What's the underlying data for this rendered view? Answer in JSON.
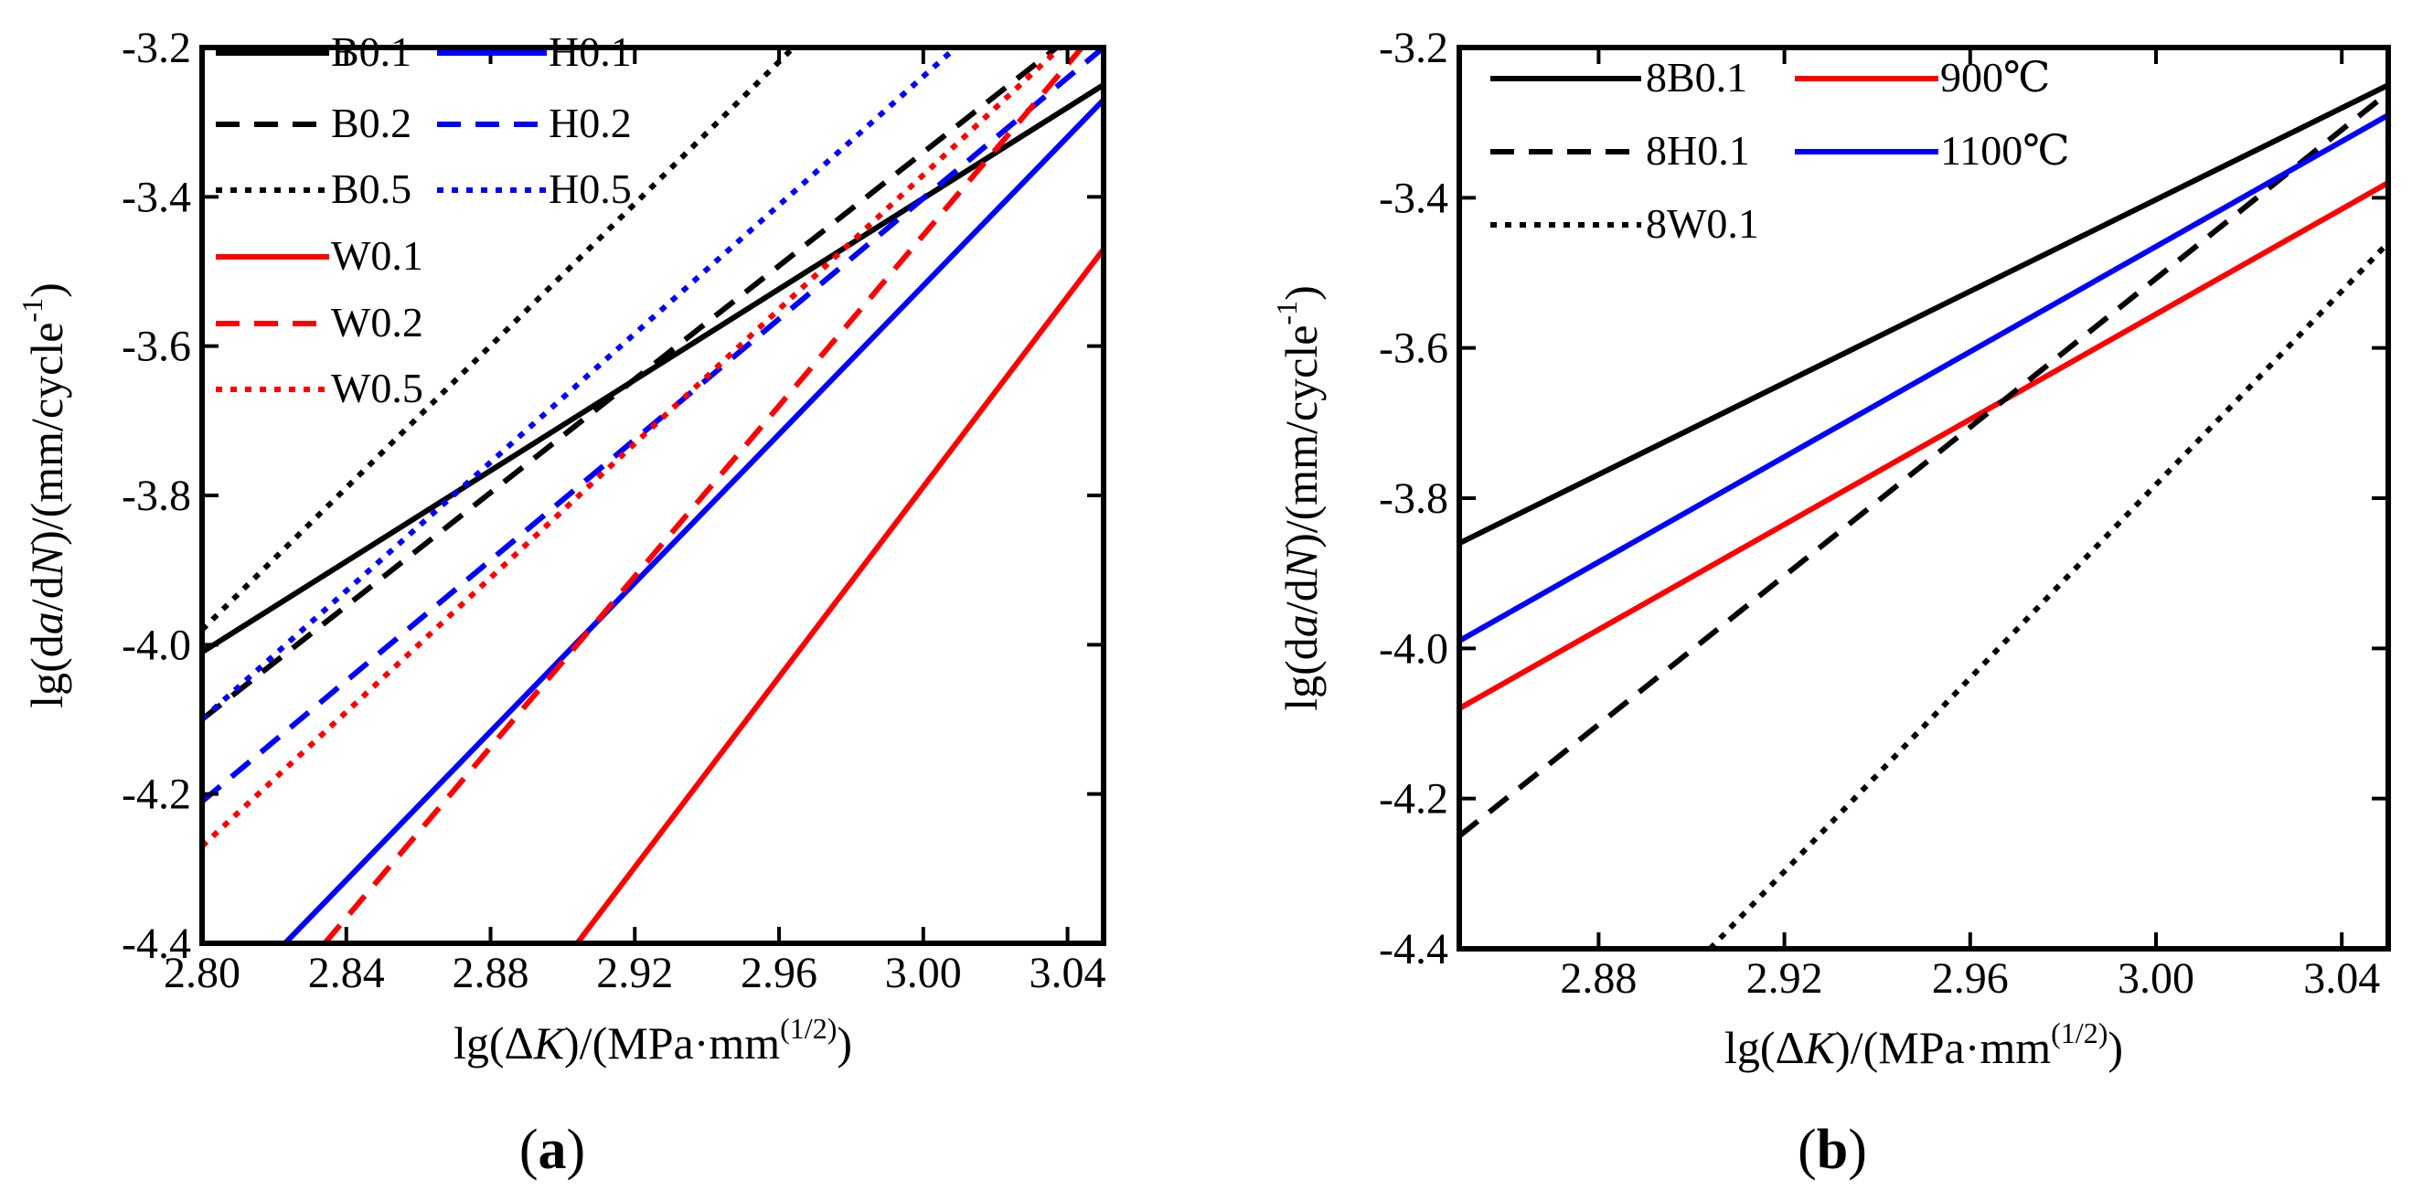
{
  "chart_data": [
    {
      "type": "line",
      "panel_label": {
        "open": "(",
        "letter": "a",
        "close": ")"
      },
      "xlabel": {
        "pre": "lg(Δ",
        "italic": "K",
        "post": ")/(MPa·mm",
        "sup": "(1/2)",
        "close": ")"
      },
      "ylabel": {
        "pre": "lg(d",
        "a": "a",
        "mid": "/d",
        "n": "N",
        "post": ")/(mm/cycle",
        "sup": "-1",
        "close": ")"
      },
      "xlim": [
        2.8,
        3.05
      ],
      "ylim": [
        -4.4,
        -3.2
      ],
      "xticks": [
        "2.80",
        "2.84",
        "2.88",
        "2.92",
        "2.96",
        "3.00",
        "3.04"
      ],
      "xtick_values": [
        2.8,
        2.84,
        2.88,
        2.92,
        2.96,
        3.0,
        3.04
      ],
      "yticks": [
        "-3.2",
        "-3.4",
        "-3.6",
        "-3.8",
        "-4.0",
        "-4.2",
        "-4.4"
      ],
      "ytick_values": [
        -3.2,
        -3.4,
        -3.6,
        -3.8,
        -4.0,
        -4.2,
        -4.4
      ],
      "legend_columns": 2,
      "series": [
        {
          "name": "B0.1",
          "color": "#000000",
          "style": "solid",
          "x": [
            2.8,
            3.05
          ],
          "y": [
            -4.01,
            -3.25
          ]
        },
        {
          "name": "H0.1",
          "color": "#0000ff",
          "style": "solid",
          "x": [
            2.823,
            3.05
          ],
          "y": [
            -4.4,
            -3.27
          ]
        },
        {
          "name": "B0.2",
          "color": "#000000",
          "style": "dashed",
          "x": [
            2.8,
            3.037
          ],
          "y": [
            -4.1,
            -3.2
          ]
        },
        {
          "name": "H0.2",
          "color": "#0000ff",
          "style": "dashed",
          "x": [
            2.8,
            3.05
          ],
          "y": [
            -4.21,
            -3.2
          ]
        },
        {
          "name": "B0.5",
          "color": "#000000",
          "style": "dotted",
          "x": [
            2.8,
            2.964
          ],
          "y": [
            -3.98,
            -3.2
          ]
        },
        {
          "name": "H0.5",
          "color": "#0000ff",
          "style": "dotted",
          "x": [
            2.8,
            3.009
          ],
          "y": [
            -4.1,
            -3.2
          ]
        },
        {
          "name": "W0.1",
          "color": "#ff0000",
          "style": "solid",
          "x": [
            2.904,
            3.05
          ],
          "y": [
            -4.4,
            -3.47
          ]
        },
        {
          "name": "W0.2",
          "color": "#ff0000",
          "style": "dashed",
          "x": [
            2.834,
            3.044
          ],
          "y": [
            -4.4,
            -3.2
          ]
        },
        {
          "name": "W0.5",
          "color": "#ff0000",
          "style": "dotted",
          "x": [
            2.8,
            3.038
          ],
          "y": [
            -4.27,
            -3.2
          ]
        }
      ]
    },
    {
      "type": "line",
      "panel_label": {
        "open": "(",
        "letter": "b",
        "close": ")"
      },
      "xlabel": {
        "pre": "lg(Δ",
        "italic": "K",
        "post": ")/(MPa·mm",
        "sup": "(1/2)",
        "close": ")"
      },
      "ylabel": {
        "pre": "lg(d",
        "a": "a",
        "mid": "/d",
        "n": "N",
        "post": ")/(mm/cycle",
        "sup": "-1",
        "close": ")"
      },
      "xlim": [
        2.85,
        3.05
      ],
      "ylim": [
        -4.4,
        -3.2
      ],
      "xticks": [
        "2.88",
        "2.92",
        "2.96",
        "3.00",
        "3.04"
      ],
      "xtick_values": [
        2.88,
        2.92,
        2.96,
        3.0,
        3.04
      ],
      "yticks": [
        "-3.2",
        "-3.4",
        "-3.6",
        "-3.8",
        "-4.0",
        "-4.2",
        "-4.4"
      ],
      "ytick_values": [
        -3.2,
        -3.4,
        -3.6,
        -3.8,
        -4.0,
        -4.2,
        -4.4
      ],
      "legend_columns": 2,
      "series": [
        {
          "name": "8B0.1",
          "color": "#000000",
          "style": "solid",
          "x": [
            2.85,
            3.05
          ],
          "y": [
            -3.86,
            -3.25
          ]
        },
        {
          "name": "900℃",
          "color": "#ff0000",
          "style": "solid",
          "x": [
            2.85,
            3.05
          ],
          "y": [
            -4.08,
            -3.38
          ]
        },
        {
          "name": "8H0.1",
          "color": "#000000",
          "style": "dashed",
          "x": [
            2.85,
            3.05
          ],
          "y": [
            -4.25,
            -3.26
          ]
        },
        {
          "name": "1100℃",
          "color": "#0000ff",
          "style": "solid",
          "x": [
            2.85,
            3.05
          ],
          "y": [
            -3.99,
            -3.29
          ]
        },
        {
          "name": "8W0.1",
          "color": "#000000",
          "style": "dotted",
          "x": [
            2.904,
            3.05
          ],
          "y": [
            -4.4,
            -3.46
          ]
        }
      ]
    }
  ]
}
